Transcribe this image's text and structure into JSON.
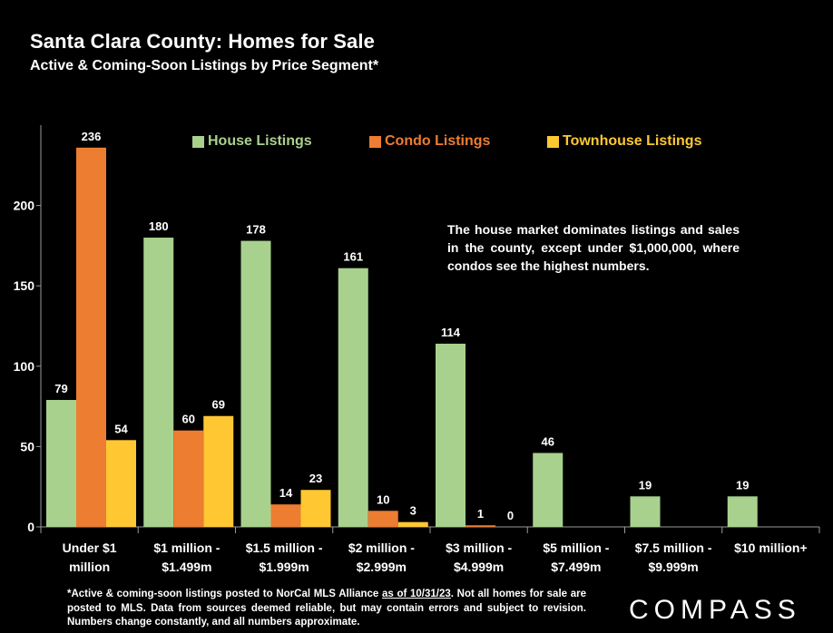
{
  "title": "Santa Clara County: Homes for Sale",
  "subtitle": "Active & Coming-Soon Listings by Price Segment*",
  "annotation": "The house market dominates listings and sales in the county, except under $1,000,000, where condos see the highest numbers.",
  "footnote": {
    "before": "*Active & coming-soon listings posted to NorCal MLS Alliance ",
    "underlined": "as of 10/31/23",
    "after": ". Not all homes for sale are posted to MLS. Data from sources deemed reliable, but may contain errors and subject to revision. Numbers change constantly, and all numbers approximate."
  },
  "logo": "COMPASS",
  "colors": {
    "house": "#a9d18e",
    "condo": "#ed7d31",
    "townhouse": "#ffc832",
    "background": "#000000"
  },
  "chart_data": {
    "type": "bar",
    "categories": [
      [
        "Under $1",
        "million"
      ],
      [
        "$1 million -",
        "$1.499m"
      ],
      [
        "$1.5 million -",
        "$1.999m"
      ],
      [
        "$2 million -",
        "$2.999m"
      ],
      [
        "$3 million -",
        "$4.999m"
      ],
      [
        "$5 million -",
        "$7.499m"
      ],
      [
        "$7.5 million -",
        "$9.999m"
      ],
      [
        "$10 million+"
      ]
    ],
    "series": [
      {
        "name": "House Listings",
        "color": "#a9d18e",
        "values": [
          79,
          180,
          178,
          161,
          114,
          46,
          19,
          19
        ]
      },
      {
        "name": "Condo Listings",
        "color": "#ed7d31",
        "values": [
          236,
          60,
          14,
          10,
          1,
          null,
          null,
          null
        ]
      },
      {
        "name": "Townhouse Listings",
        "color": "#ffc832",
        "values": [
          54,
          69,
          23,
          3,
          0,
          null,
          null,
          null
        ]
      }
    ],
    "ylim": [
      0,
      250
    ],
    "yticks": [
      0,
      50,
      100,
      150,
      200
    ],
    "legend": "top"
  }
}
